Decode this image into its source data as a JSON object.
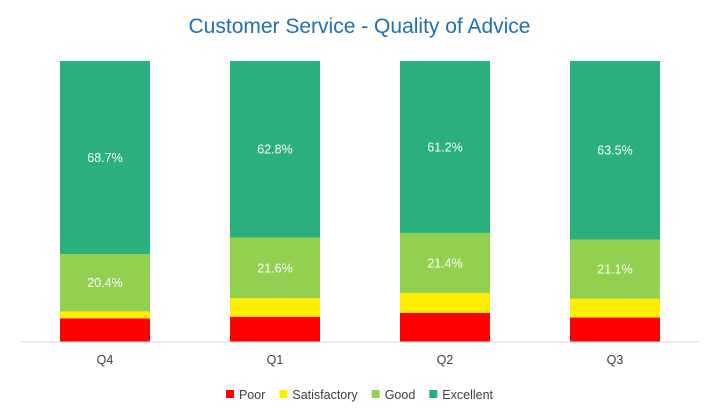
{
  "chart_data": {
    "type": "bar",
    "stacked": true,
    "percent_stacked": true,
    "title": "Customer Service - Quality of Advice",
    "xlabel": "",
    "ylabel": "",
    "ylim": [
      0,
      100
    ],
    "grid": false,
    "legend": "bottom",
    "categories": [
      "Q4",
      "Q1",
      "Q2",
      "Q3"
    ],
    "series": [
      {
        "name": "Poor",
        "color": "#ff0000",
        "values": [
          8.4,
          9.0,
          10.4,
          8.7
        ],
        "labels": [
          "",
          "",
          "",
          ""
        ]
      },
      {
        "name": "Satisfactory",
        "color": "#ffee00",
        "values": [
          2.5,
          6.6,
          7.0,
          6.7
        ],
        "labels": [
          "",
          "",
          "",
          ""
        ]
      },
      {
        "name": "Good",
        "color": "#92d050",
        "values": [
          20.4,
          21.6,
          21.4,
          21.1
        ],
        "labels": [
          "20.4%",
          "21.6%",
          "21.4%",
          "21.1%"
        ]
      },
      {
        "name": "Excellent",
        "color": "#2baf7c",
        "values": [
          68.7,
          62.8,
          61.2,
          63.5
        ],
        "labels": [
          "68.7%",
          "62.8%",
          "61.2%",
          "63.5%"
        ]
      }
    ]
  }
}
